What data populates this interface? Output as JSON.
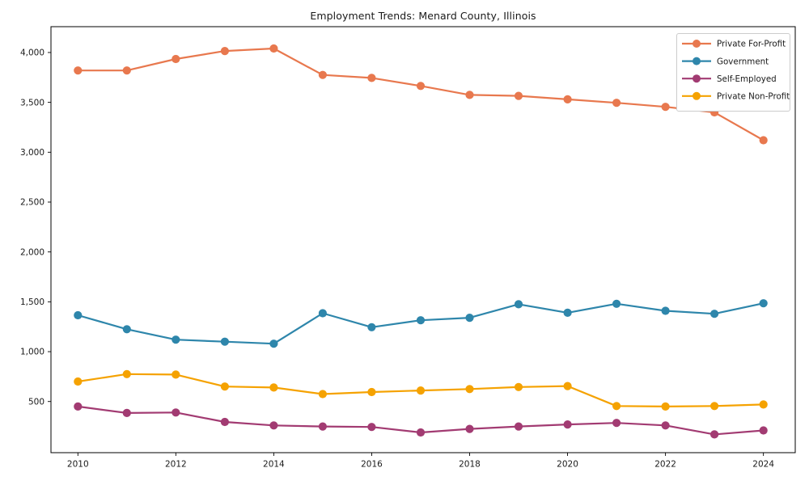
{
  "chart_data": {
    "type": "line",
    "title": "Employment Trends: Menard County, Illinois",
    "xlabel": "",
    "ylabel": "",
    "grid": false,
    "legend_position": "upper right",
    "marker": "circle",
    "x": [
      2010,
      2011,
      2012,
      2013,
      2014,
      2015,
      2016,
      2017,
      2018,
      2019,
      2020,
      2021,
      2022,
      2023,
      2024
    ],
    "series": [
      {
        "name": "Private For-Profit",
        "color": "#E8784E",
        "values": [
          3820,
          3820,
          3935,
          4015,
          4040,
          3775,
          3745,
          3665,
          3575,
          3565,
          3530,
          3495,
          3455,
          3400,
          3120
        ]
      },
      {
        "name": "Government",
        "color": "#2E86AB",
        "values": [
          1365,
          1225,
          1120,
          1100,
          1080,
          1385,
          1245,
          1315,
          1340,
          1475,
          1390,
          1480,
          1410,
          1380,
          1485
        ]
      },
      {
        "name": "Self-Employed",
        "color": "#A23B72",
        "values": [
          450,
          385,
          390,
          295,
          260,
          250,
          245,
          190,
          225,
          250,
          270,
          285,
          260,
          170,
          210
        ]
      },
      {
        "name": "Private Non-Profit",
        "color": "#F5A201",
        "values": [
          700,
          775,
          770,
          650,
          640,
          575,
          595,
          610,
          625,
          645,
          655,
          455,
          450,
          455,
          470
        ]
      }
    ],
    "xlim": [
      2009.45,
      2024.65
    ],
    "ylim": [
      -13,
      4259
    ],
    "yticks": [
      500,
      1000,
      1500,
      2000,
      2500,
      3000,
      3500,
      4000
    ],
    "ytick_labels": [
      "500",
      "1,000",
      "1,500",
      "2,000",
      "2,500",
      "3,000",
      "3,500",
      "4,000"
    ],
    "xticks": [
      2010,
      2012,
      2014,
      2016,
      2018,
      2020,
      2022,
      2024
    ],
    "xtick_labels": [
      "2010",
      "2012",
      "2014",
      "2016",
      "2018",
      "2020",
      "2022",
      "2024"
    ]
  },
  "colors": {
    "text": "#1a1a1a",
    "spine": "#000000",
    "legend_border": "#cccccc",
    "background": "#ffffff"
  }
}
